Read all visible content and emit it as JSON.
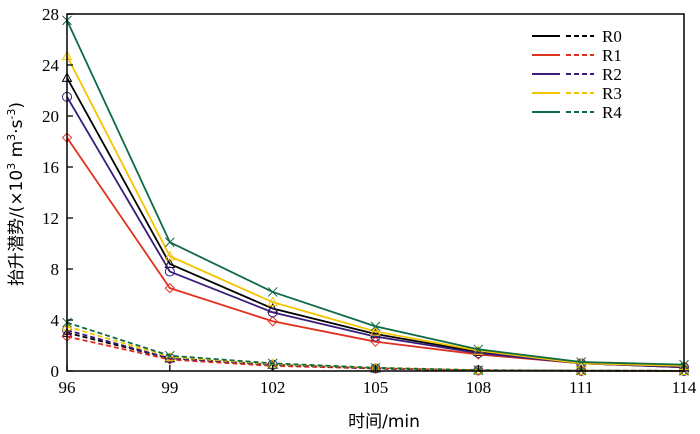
{
  "chart_data": {
    "type": "line",
    "title": "",
    "xlabel": "时间/min",
    "ylabel": "抬升潜势/(×10",
    "ylabel_sup": "3",
    "ylabel_unit": " m",
    "ylabel_unit_sup1": "3",
    "ylabel_unit_mid": "·s",
    "ylabel_unit_sup2": "-3",
    "ylabel_close": ")",
    "x": [
      96,
      99,
      102,
      105,
      108,
      111,
      114
    ],
    "xticks": [
      "96",
      "99",
      "102",
      "105",
      "108",
      "111",
      "114"
    ],
    "yticks": [
      "0",
      "4",
      "8",
      "12",
      "16",
      "20",
      "24",
      "28"
    ],
    "xlim": [
      96,
      114
    ],
    "ylim": [
      0,
      28
    ],
    "legend_position": "top-right",
    "series": [
      {
        "name": "R0",
        "color": "#000000",
        "marker": "triangle",
        "solid": [
          23.0,
          8.4,
          4.9,
          2.9,
          1.5,
          0.6,
          0.3
        ],
        "dashed": [
          3.0,
          1.0,
          0.5,
          0.2,
          0.05,
          0.02,
          0.01
        ]
      },
      {
        "name": "R1",
        "color": "#e03020",
        "marker": "diamond",
        "solid": [
          18.3,
          6.5,
          3.9,
          2.3,
          1.3,
          0.6,
          0.3
        ],
        "dashed": [
          2.7,
          0.9,
          0.4,
          0.2,
          0.05,
          0.02,
          0.01
        ]
      },
      {
        "name": "R2",
        "color": "#3a1d7a",
        "marker": "circle",
        "solid": [
          21.5,
          7.8,
          4.6,
          2.7,
          1.4,
          0.6,
          0.3
        ],
        "dashed": [
          3.2,
          1.0,
          0.5,
          0.2,
          0.05,
          0.02,
          0.01
        ]
      },
      {
        "name": "R3",
        "color": "#f5c400",
        "marker": "triangle",
        "solid": [
          24.7,
          9.0,
          5.4,
          3.1,
          1.6,
          0.6,
          0.4
        ],
        "dashed": [
          3.5,
          1.1,
          0.55,
          0.25,
          0.06,
          0.02,
          0.01
        ]
      },
      {
        "name": "R4",
        "color": "#0f6b46",
        "marker": "x",
        "solid": [
          27.5,
          10.1,
          6.2,
          3.5,
          1.7,
          0.7,
          0.5
        ],
        "dashed": [
          3.8,
          1.2,
          0.6,
          0.25,
          0.07,
          0.03,
          0.01
        ]
      }
    ]
  }
}
